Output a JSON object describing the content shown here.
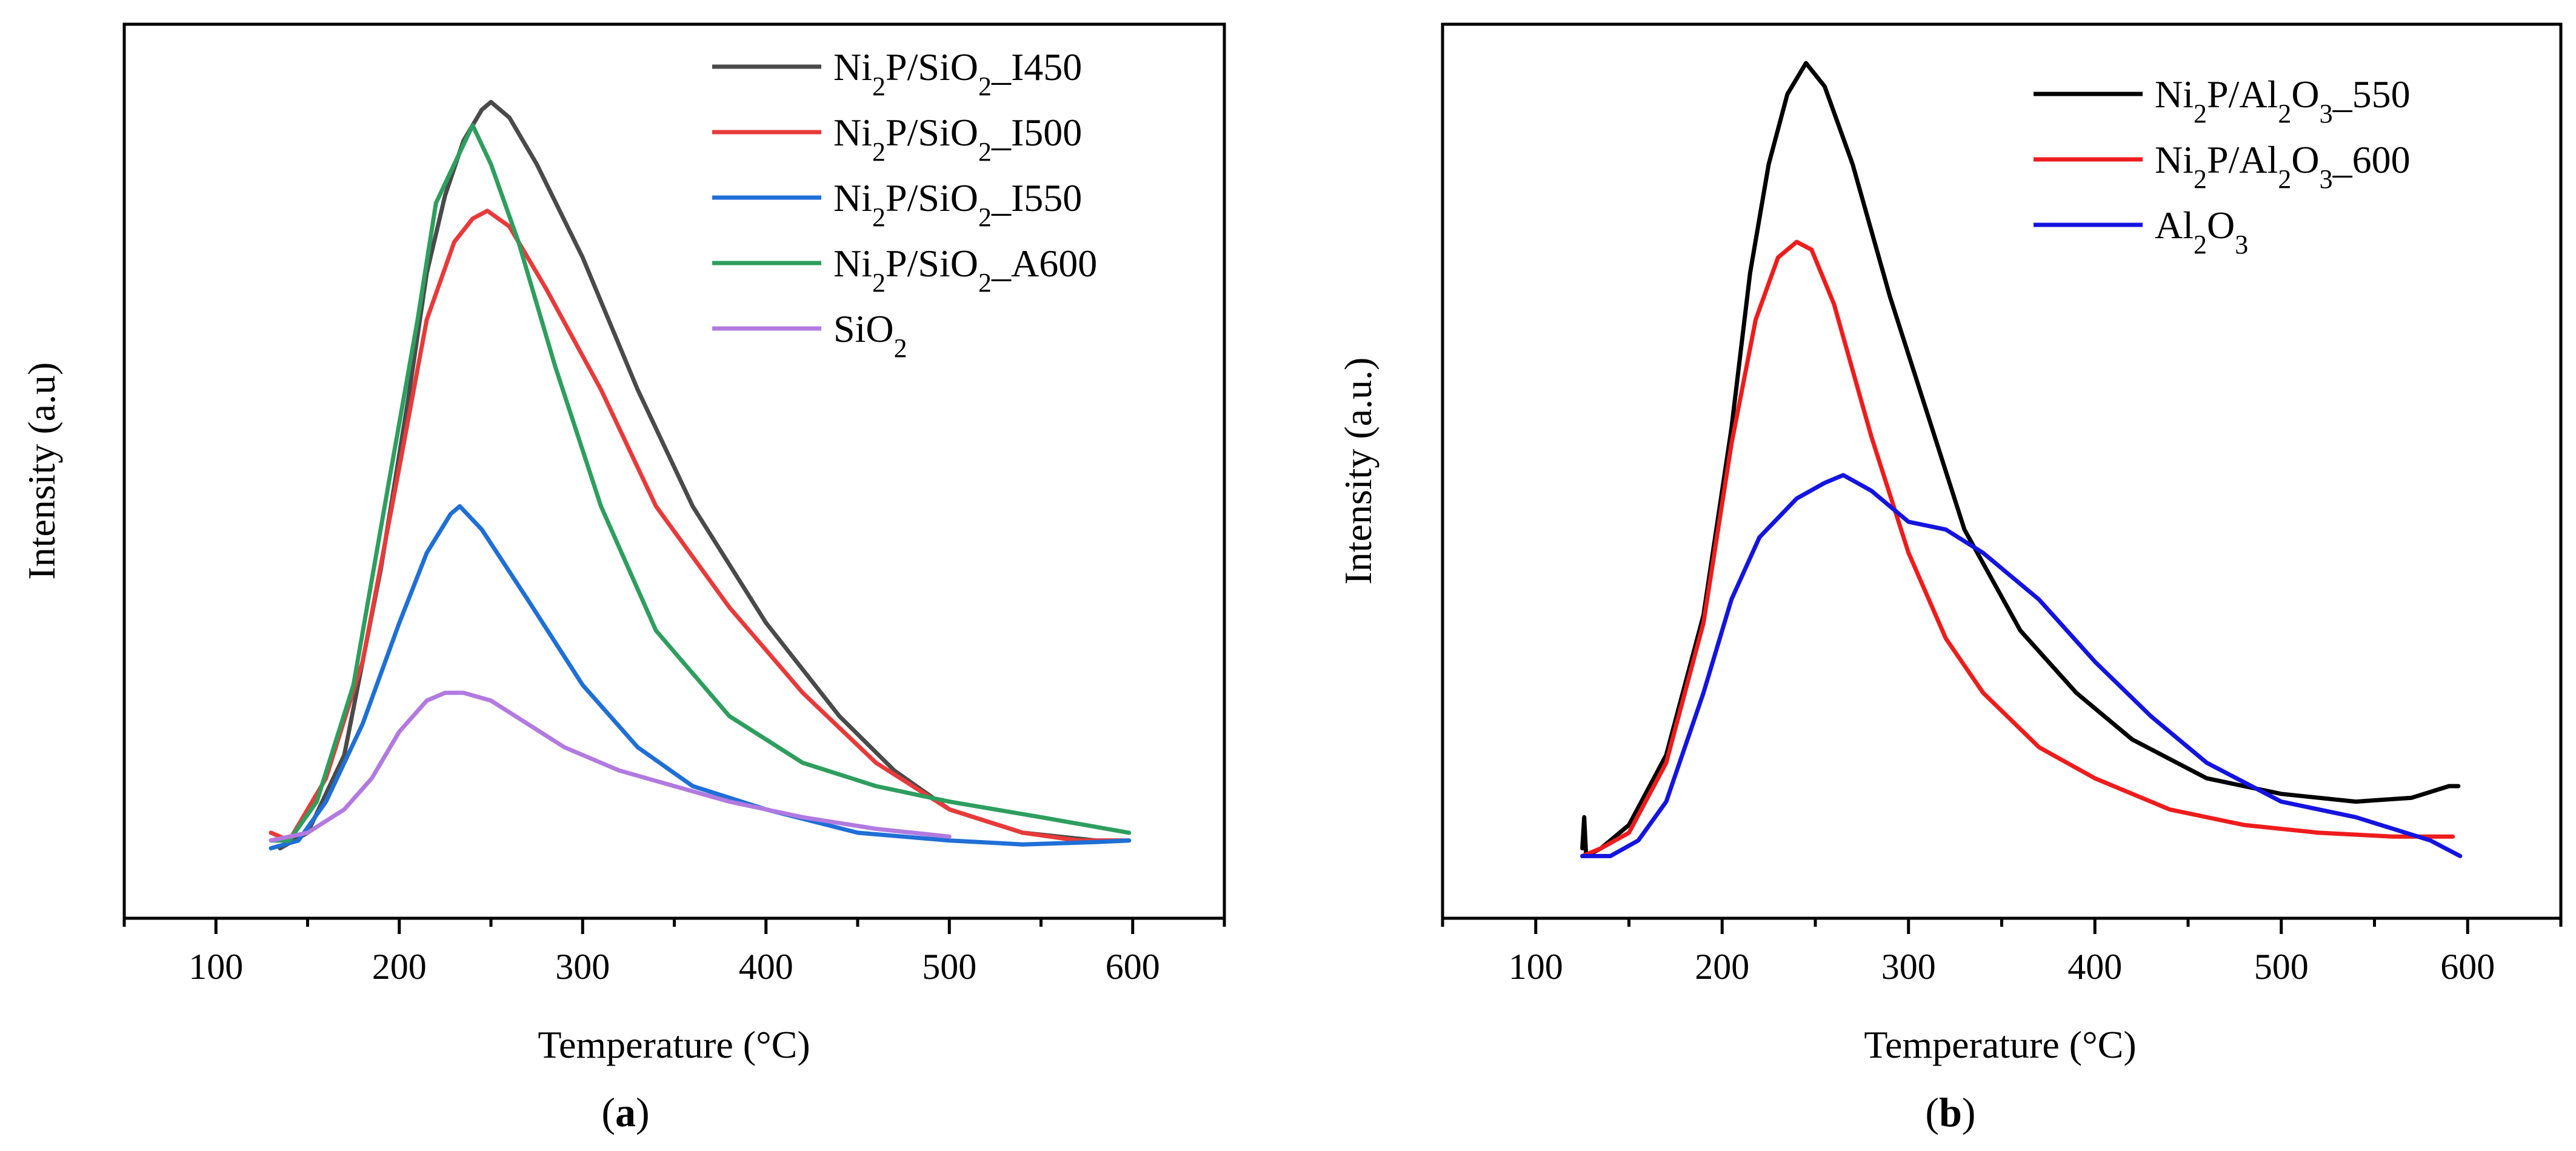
{
  "chart_data": [
    {
      "type": "line",
      "panel_label": "a",
      "xlabel": "Temperature (°C)",
      "ylabel": "Intensity (a.u)",
      "xlim": [
        50,
        650
      ],
      "ylim": [
        -5,
        110
      ],
      "xticks": [
        "100",
        "200",
        "300",
        "400",
        "500",
        "600"
      ],
      "grid": false,
      "legend_position": "top-right",
      "series": [
        {
          "name": "Ni2P/SiO2_I450",
          "legend": {
            "base": "Ni",
            "sub1": "2",
            "mid": "P/SiO",
            "sub2": "2",
            "tail": "_I450"
          },
          "color": "#4a4a4a",
          "points": [
            [
              135,
              4
            ],
            [
              150,
              6
            ],
            [
              170,
              16
            ],
            [
              190,
              40
            ],
            [
              205,
              62
            ],
            [
              215,
              78
            ],
            [
              225,
              88
            ],
            [
              235,
              95
            ],
            [
              245,
              99
            ],
            [
              250,
              100
            ],
            [
              260,
              98
            ],
            [
              275,
              92
            ],
            [
              300,
              80
            ],
            [
              330,
              63
            ],
            [
              360,
              48
            ],
            [
              400,
              33
            ],
            [
              440,
              21
            ],
            [
              470,
              14
            ],
            [
              500,
              9
            ],
            [
              540,
              6
            ],
            [
              580,
              5
            ],
            [
              598,
              5
            ]
          ]
        },
        {
          "name": "Ni2P/SiO2_I500",
          "legend": {
            "base": "Ni",
            "sub1": "2",
            "mid": "P/SiO",
            "sub2": "2",
            "tail": "_I500"
          },
          "color": "#e83a3a",
          "points": [
            [
              130,
              6
            ],
            [
              140,
              5
            ],
            [
              160,
              13
            ],
            [
              180,
              28
            ],
            [
              200,
              53
            ],
            [
              215,
              72
            ],
            [
              230,
              82
            ],
            [
              240,
              85
            ],
            [
              248,
              86
            ],
            [
              260,
              84
            ],
            [
              280,
              76
            ],
            [
              310,
              63
            ],
            [
              340,
              48
            ],
            [
              380,
              35
            ],
            [
              420,
              24
            ],
            [
              460,
              15
            ],
            [
              500,
              9
            ],
            [
              540,
              6
            ],
            [
              570,
              5
            ],
            [
              598,
              5
            ]
          ]
        },
        {
          "name": "Ni2P/SiO2_I550",
          "legend": {
            "base": "Ni",
            "sub1": "2",
            "mid": "P/SiO",
            "sub2": "2",
            "tail": "_I550"
          },
          "color": "#1f6fd6",
          "points": [
            [
              130,
              4
            ],
            [
              145,
              5
            ],
            [
              160,
              10
            ],
            [
              180,
              20
            ],
            [
              200,
              33
            ],
            [
              215,
              42
            ],
            [
              228,
              47
            ],
            [
              233,
              48
            ],
            [
              245,
              45
            ],
            [
              270,
              36
            ],
            [
              300,
              25
            ],
            [
              330,
              17
            ],
            [
              360,
              12
            ],
            [
              400,
              9
            ],
            [
              450,
              6
            ],
            [
              500,
              5
            ],
            [
              540,
              4.5
            ],
            [
              580,
              4.8
            ],
            [
              598,
              5
            ]
          ]
        },
        {
          "name": "Ni2P/SiO2_A600",
          "legend": {
            "base": "Ni",
            "sub1": "2",
            "mid": "P/SiO",
            "sub2": "2",
            "tail": "_A600"
          },
          "color": "#2e9e5e",
          "points": [
            [
              130,
              5
            ],
            [
              140,
              5
            ],
            [
              155,
              10
            ],
            [
              175,
              25
            ],
            [
              195,
              52
            ],
            [
              210,
              72
            ],
            [
              220,
              87
            ],
            [
              230,
              92
            ],
            [
              240,
              97
            ],
            [
              250,
              92
            ],
            [
              265,
              82
            ],
            [
              285,
              66
            ],
            [
              310,
              48
            ],
            [
              340,
              32
            ],
            [
              380,
              21
            ],
            [
              420,
              15
            ],
            [
              460,
              12
            ],
            [
              500,
              10
            ],
            [
              550,
              8
            ],
            [
              598,
              6
            ]
          ]
        },
        {
          "name": "SiO2",
          "legend": {
            "base": "SiO",
            "sub1": "2",
            "mid": "",
            "sub2": "",
            "tail": ""
          },
          "color": "#b27ae0",
          "points": [
            [
              130,
              5
            ],
            [
              150,
              6
            ],
            [
              170,
              9
            ],
            [
              185,
              13
            ],
            [
              200,
              19
            ],
            [
              215,
              23
            ],
            [
              225,
              24
            ],
            [
              235,
              24
            ],
            [
              250,
              23
            ],
            [
              270,
              20
            ],
            [
              290,
              17
            ],
            [
              320,
              14
            ],
            [
              350,
              12
            ],
            [
              380,
              10
            ],
            [
              420,
              8
            ],
            [
              460,
              6.5
            ],
            [
              500,
              5.5
            ]
          ]
        }
      ]
    },
    {
      "type": "line",
      "panel_label": "b",
      "xlabel": "Temperature (°C)",
      "ylabel": "Intensity (a.u.)",
      "xlim": [
        50,
        650
      ],
      "ylim": [
        -5,
        110
      ],
      "xticks": [
        "100",
        "200",
        "300",
        "400",
        "500",
        "600"
      ],
      "grid": false,
      "legend_position": "top-right",
      "series": [
        {
          "name": "Ni2P/Al2O3_550",
          "legend": {
            "base": "Ni",
            "sub1": "2",
            "mid": "P/Al",
            "sub2": "2",
            "tail": "O",
            "sub3": "3",
            "tail2": "_550"
          },
          "color": "#000000",
          "points": [
            [
              125,
              4
            ],
            [
              126,
              8
            ],
            [
              127,
              3
            ],
            [
              135,
              4
            ],
            [
              150,
              7
            ],
            [
              170,
              16
            ],
            [
              190,
              34
            ],
            [
              205,
              58
            ],
            [
              215,
              78
            ],
            [
              225,
              92
            ],
            [
              235,
              101
            ],
            [
              245,
              105
            ],
            [
              255,
              102
            ],
            [
              270,
              92
            ],
            [
              290,
              75
            ],
            [
              310,
              60
            ],
            [
              330,
              45
            ],
            [
              360,
              32
            ],
            [
              390,
              24
            ],
            [
              420,
              18
            ],
            [
              460,
              13
            ],
            [
              500,
              11
            ],
            [
              540,
              10
            ],
            [
              570,
              10.5
            ],
            [
              590,
              12
            ],
            [
              595,
              12
            ]
          ]
        },
        {
          "name": "Ni2P/Al2O3_600",
          "legend": {
            "base": "Ni",
            "sub1": "2",
            "mid": "P/Al",
            "sub2": "2",
            "tail": "O",
            "sub3": "3",
            "tail2": "_600"
          },
          "color": "#ee1c1c",
          "points": [
            [
              125,
              3
            ],
            [
              135,
              4
            ],
            [
              150,
              6
            ],
            [
              170,
              15
            ],
            [
              190,
              33
            ],
            [
              205,
              56
            ],
            [
              218,
              72
            ],
            [
              230,
              80
            ],
            [
              240,
              82
            ],
            [
              248,
              81
            ],
            [
              260,
              74
            ],
            [
              280,
              57
            ],
            [
              300,
              42
            ],
            [
              320,
              31
            ],
            [
              340,
              24
            ],
            [
              370,
              17
            ],
            [
              400,
              13
            ],
            [
              440,
              9
            ],
            [
              480,
              7
            ],
            [
              520,
              6
            ],
            [
              560,
              5.5
            ],
            [
              592,
              5.5
            ]
          ]
        },
        {
          "name": "Al2O3",
          "legend": {
            "base": "Al",
            "sub1": "2",
            "mid": "O",
            "sub2": "3",
            "tail": ""
          },
          "color": "#1414e0",
          "points": [
            [
              125,
              3
            ],
            [
              140,
              3
            ],
            [
              155,
              5
            ],
            [
              170,
              10
            ],
            [
              190,
              24
            ],
            [
              205,
              36
            ],
            [
              220,
              44
            ],
            [
              240,
              49
            ],
            [
              255,
              51
            ],
            [
              265,
              52
            ],
            [
              280,
              50
            ],
            [
              300,
              46
            ],
            [
              320,
              45
            ],
            [
              340,
              42
            ],
            [
              370,
              36
            ],
            [
              400,
              28
            ],
            [
              430,
              21
            ],
            [
              460,
              15
            ],
            [
              500,
              10
            ],
            [
              540,
              8
            ],
            [
              580,
              5
            ],
            [
              596,
              3
            ]
          ]
        }
      ]
    }
  ]
}
